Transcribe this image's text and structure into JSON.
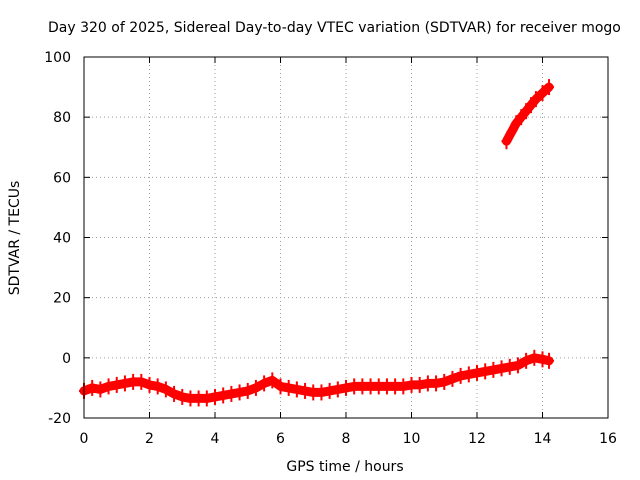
{
  "chart_data": {
    "type": "scatter",
    "title": "Day 320 of 2025, Sidereal Day-to-day VTEC variation (SDTVAR) for receiver mogo",
    "xlabel": "GPS time / hours",
    "ylabel": "SDTVAR / TECUs",
    "xlim": [
      0,
      16
    ],
    "ylim": [
      -20,
      100
    ],
    "xticks": [
      0,
      2,
      4,
      6,
      8,
      10,
      12,
      14,
      16
    ],
    "yticks": [
      -20,
      0,
      20,
      40,
      60,
      80,
      100
    ],
    "grid": true,
    "marker": "+",
    "colors": {
      "series": "#ff0000",
      "grid": "#a0a0a0",
      "axis": "#000000"
    },
    "series": [
      {
        "name": "main",
        "x": [
          0.0,
          0.25,
          0.5,
          0.75,
          1.0,
          1.25,
          1.5,
          1.75,
          2.0,
          2.25,
          2.5,
          2.75,
          3.0,
          3.25,
          3.5,
          3.75,
          4.0,
          4.25,
          4.5,
          4.75,
          5.0,
          5.25,
          5.5,
          5.75,
          6.0,
          6.25,
          6.5,
          6.75,
          7.0,
          7.25,
          7.5,
          7.75,
          8.0,
          8.25,
          8.5,
          8.75,
          9.0,
          9.25,
          9.5,
          9.75,
          10.0,
          10.25,
          10.5,
          10.75,
          11.0,
          11.25,
          11.5,
          11.75,
          12.0,
          12.25,
          12.5,
          12.75,
          13.0,
          13.25,
          13.5,
          13.75,
          14.0,
          14.2
        ],
        "y": [
          -11,
          -10,
          -10.5,
          -9.5,
          -9,
          -8.5,
          -8,
          -8,
          -9,
          -9.5,
          -10.5,
          -12,
          -13,
          -13.5,
          -13.5,
          -13.5,
          -13,
          -12.5,
          -12,
          -11.5,
          -11,
          -10,
          -8.5,
          -7.5,
          -9.5,
          -10,
          -10.5,
          -11,
          -11.5,
          -11.5,
          -11,
          -10.5,
          -10,
          -9.5,
          -9.5,
          -9.5,
          -9.5,
          -9.5,
          -9.5,
          -9.5,
          -9,
          -9,
          -8.5,
          -8.5,
          -8,
          -7,
          -6,
          -5.5,
          -5,
          -4.5,
          -4,
          -3.5,
          -3,
          -2.5,
          -1,
          0,
          -0.5,
          -1
        ]
      },
      {
        "name": "upper",
        "x": [
          12.9,
          13.05,
          13.2,
          13.35,
          13.5,
          13.65,
          13.8,
          14.0,
          14.2
        ],
        "y": [
          72,
          75,
          78,
          80,
          82,
          84,
          86,
          88,
          90
        ]
      }
    ]
  }
}
